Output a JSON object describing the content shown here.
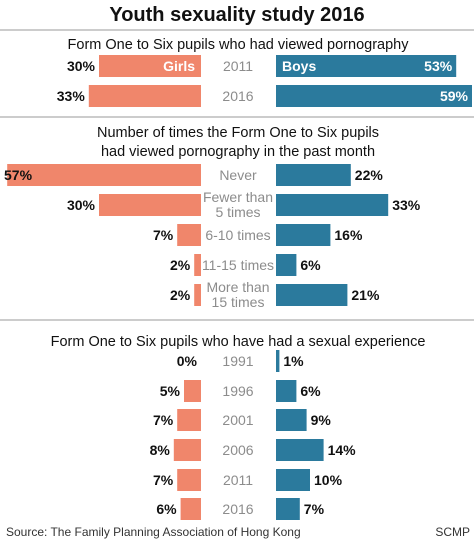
{
  "title": "Youth sexuality study 2016",
  "source": "Source: The Family Planning Association of Hong Kong",
  "credit": "SCMP",
  "colors": {
    "girls": "#f0866b",
    "boys": "#2b7a9d",
    "center_label": "#8c8c8c",
    "text": "#111111",
    "divider": "#9a9a9a"
  },
  "chart_data": [
    {
      "type": "bar",
      "title": "Form One to Six pupils who had viewed pornography",
      "legend": {
        "girls": "Girls",
        "boys": "Boys"
      },
      "categories": [
        "2011",
        "2016"
      ],
      "series": [
        {
          "name": "Girls",
          "values": [
            30,
            33
          ],
          "labels": [
            "30%",
            "33%"
          ]
        },
        {
          "name": "Boys",
          "values": [
            53,
            59
          ],
          "labels": [
            "53%",
            "59%"
          ]
        }
      ],
      "unit": "%"
    },
    {
      "type": "bar",
      "title_lines": [
        "Number of times the Form One to Six pupils",
        "had viewed pornography in the past month"
      ],
      "categories": [
        [
          "Never"
        ],
        [
          "Fewer than",
          "5 times"
        ],
        [
          "6-10 times"
        ],
        [
          "11-15 times"
        ],
        [
          "More than",
          "15 times"
        ]
      ],
      "series": [
        {
          "name": "Girls",
          "values": [
            57,
            30,
            7,
            2,
            2
          ],
          "labels": [
            "57%",
            "30%",
            "7%",
            "2%",
            "2%"
          ]
        },
        {
          "name": "Boys",
          "values": [
            22,
            33,
            16,
            6,
            21
          ],
          "labels": [
            "22%",
            "33%",
            "16%",
            "6%",
            "21%"
          ]
        }
      ],
      "unit": "%"
    },
    {
      "type": "bar",
      "title": "Form One to Six pupils who have had a sexual experience",
      "categories": [
        "1991",
        "1996",
        "2001",
        "2006",
        "2011",
        "2016"
      ],
      "series": [
        {
          "name": "Girls",
          "values": [
            0,
            5,
            7,
            8,
            7,
            6
          ],
          "labels": [
            "0%",
            "5%",
            "7%",
            "8%",
            "7%",
            "6%"
          ]
        },
        {
          "name": "Boys",
          "values": [
            1,
            6,
            9,
            14,
            10,
            7
          ],
          "labels": [
            "1%",
            "6%",
            "9%",
            "14%",
            "10%",
            "7%"
          ]
        }
      ],
      "unit": "%"
    }
  ]
}
